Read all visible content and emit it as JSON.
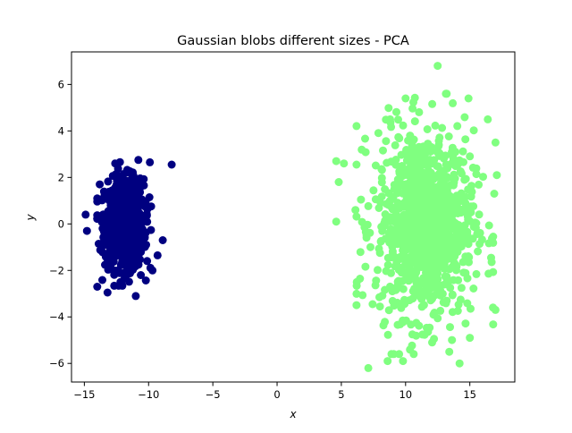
{
  "chart_data": {
    "type": "scatter",
    "title": "Gaussian blobs different sizes - PCA",
    "xlabel": "x",
    "ylabel": "y",
    "xlim": [
      -16.0,
      18.5
    ],
    "ylim": [
      -6.8,
      7.4
    ],
    "xticks": [
      -15,
      -10,
      -5,
      0,
      5,
      10,
      15
    ],
    "yticks": [
      -6,
      -4,
      -2,
      0,
      2,
      4,
      6
    ],
    "xtick_labels": [
      "−15",
      "−10",
      "−5",
      "0",
      "5",
      "10",
      "15"
    ],
    "ytick_labels": [
      "−6",
      "−4",
      "−2",
      "0",
      "2",
      "4",
      "6"
    ],
    "grid": false,
    "legend": "none",
    "series": [
      {
        "color": "#000080",
        "points_count": 1000,
        "center": [
          -11.9,
          0.0
        ],
        "std": [
          0.75,
          0.95
        ],
        "extremes": [
          [
            -14.9,
            0.4
          ],
          [
            -14.8,
            -0.3
          ],
          [
            -14.0,
            -2.7
          ],
          [
            -13.2,
            -2.95
          ],
          [
            -11.0,
            -3.1
          ],
          [
            -10.6,
            -2.2
          ],
          [
            -9.7,
            -2.0
          ],
          [
            -9.3,
            -1.35
          ],
          [
            -8.9,
            -0.7
          ],
          [
            -8.2,
            2.55
          ],
          [
            -9.9,
            2.65
          ],
          [
            -10.8,
            2.75
          ],
          [
            -12.6,
            2.6
          ],
          [
            -13.8,
            1.7
          ]
        ]
      },
      {
        "color": "#80ff80",
        "points_count": 1000,
        "center": [
          11.5,
          0.0
        ],
        "std": [
          1.9,
          2.0
        ],
        "extremes": [
          [
            4.6,
            0.1
          ],
          [
            4.6,
            2.7
          ],
          [
            5.2,
            2.6
          ],
          [
            4.8,
            1.8
          ],
          [
            6.1,
            0.6
          ],
          [
            6.2,
            -2.5
          ],
          [
            7.1,
            -6.2
          ],
          [
            8.6,
            -5.9
          ],
          [
            9.8,
            -5.9
          ],
          [
            13.4,
            -5.5
          ],
          [
            14.2,
            -6.0
          ],
          [
            15.0,
            -4.9
          ],
          [
            16.8,
            -3.6
          ],
          [
            17.0,
            -3.7
          ],
          [
            16.9,
            1.3
          ],
          [
            17.1,
            2.1
          ],
          [
            17.0,
            3.5
          ],
          [
            16.4,
            4.5
          ],
          [
            14.9,
            5.4
          ],
          [
            12.5,
            6.8
          ],
          [
            13.2,
            5.6
          ],
          [
            10.0,
            5.4
          ],
          [
            8.8,
            4.5
          ]
        ]
      }
    ]
  }
}
